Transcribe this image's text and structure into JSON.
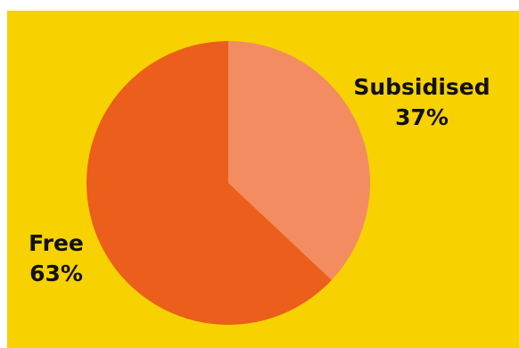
{
  "chart_data": {
    "type": "pie",
    "slices": [
      {
        "label": "Subsidised",
        "value": 37,
        "percent_label": "37%",
        "color": "#F48C62"
      },
      {
        "label": "Free",
        "value": 63,
        "percent_label": "63%",
        "color": "#EC5E1C"
      }
    ],
    "start_angle_deg": 0,
    "direction": "clockwise",
    "title": ""
  },
  "colors": {
    "panel_background": "#F7D100",
    "outer_background": "#FFFFFF"
  }
}
